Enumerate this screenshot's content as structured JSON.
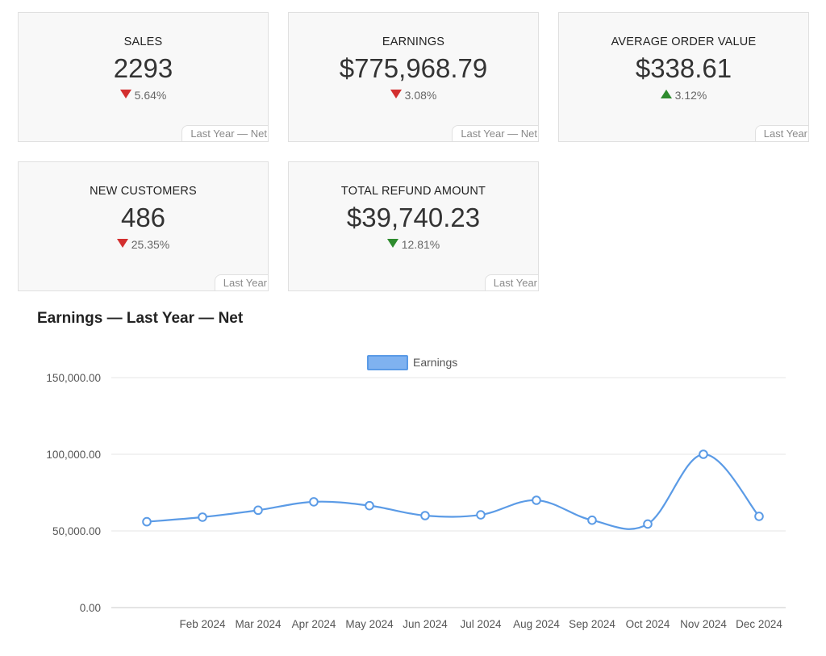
{
  "cards": [
    {
      "title": "SALES",
      "value": "2293",
      "change": "5.64%",
      "direction": "down",
      "tag": "Last Year — Net"
    },
    {
      "title": "EARNINGS",
      "value": "$775,968.79",
      "change": "3.08%",
      "direction": "down",
      "tag": "Last Year — Net"
    },
    {
      "title": "AVERAGE ORDER VALUE",
      "value": "$338.61",
      "change": "3.12%",
      "direction": "up",
      "tag": "Last Year"
    },
    {
      "title": "NEW CUSTOMERS",
      "value": "486",
      "change": "25.35%",
      "direction": "down",
      "tag": "Last Year"
    },
    {
      "title": "TOTAL REFUND AMOUNT",
      "value": "$39,740.23",
      "change": "12.81%",
      "direction": "down",
      "tag": "Last Year"
    }
  ],
  "colors": {
    "down": "#d32f2f",
    "up": "#2e8b2e",
    "line": "#5b9be6"
  },
  "chart_title": "Earnings — Last Year — Net",
  "chart_data": {
    "type": "line",
    "title": "Earnings — Last Year — Net",
    "x": [
      "",
      "Feb 2024",
      "Mar 2024",
      "Apr 2024",
      "May 2024",
      "Jun 2024",
      "Jul 2024",
      "Aug 2024",
      "Sep 2024",
      "Oct 2024",
      "Nov 2024",
      "Dec 2024"
    ],
    "series": [
      {
        "name": "Earnings",
        "values": [
          56000,
          59000,
          63500,
          69000,
          66500,
          60000,
          60500,
          70000,
          57000,
          54500,
          100000,
          59500
        ]
      }
    ],
    "yticks": [
      "0.00",
      "50,000.00",
      "100,000.00",
      "150,000.00"
    ],
    "ylim": [
      0,
      150000
    ],
    "legend": "top-center",
    "grid": true
  }
}
